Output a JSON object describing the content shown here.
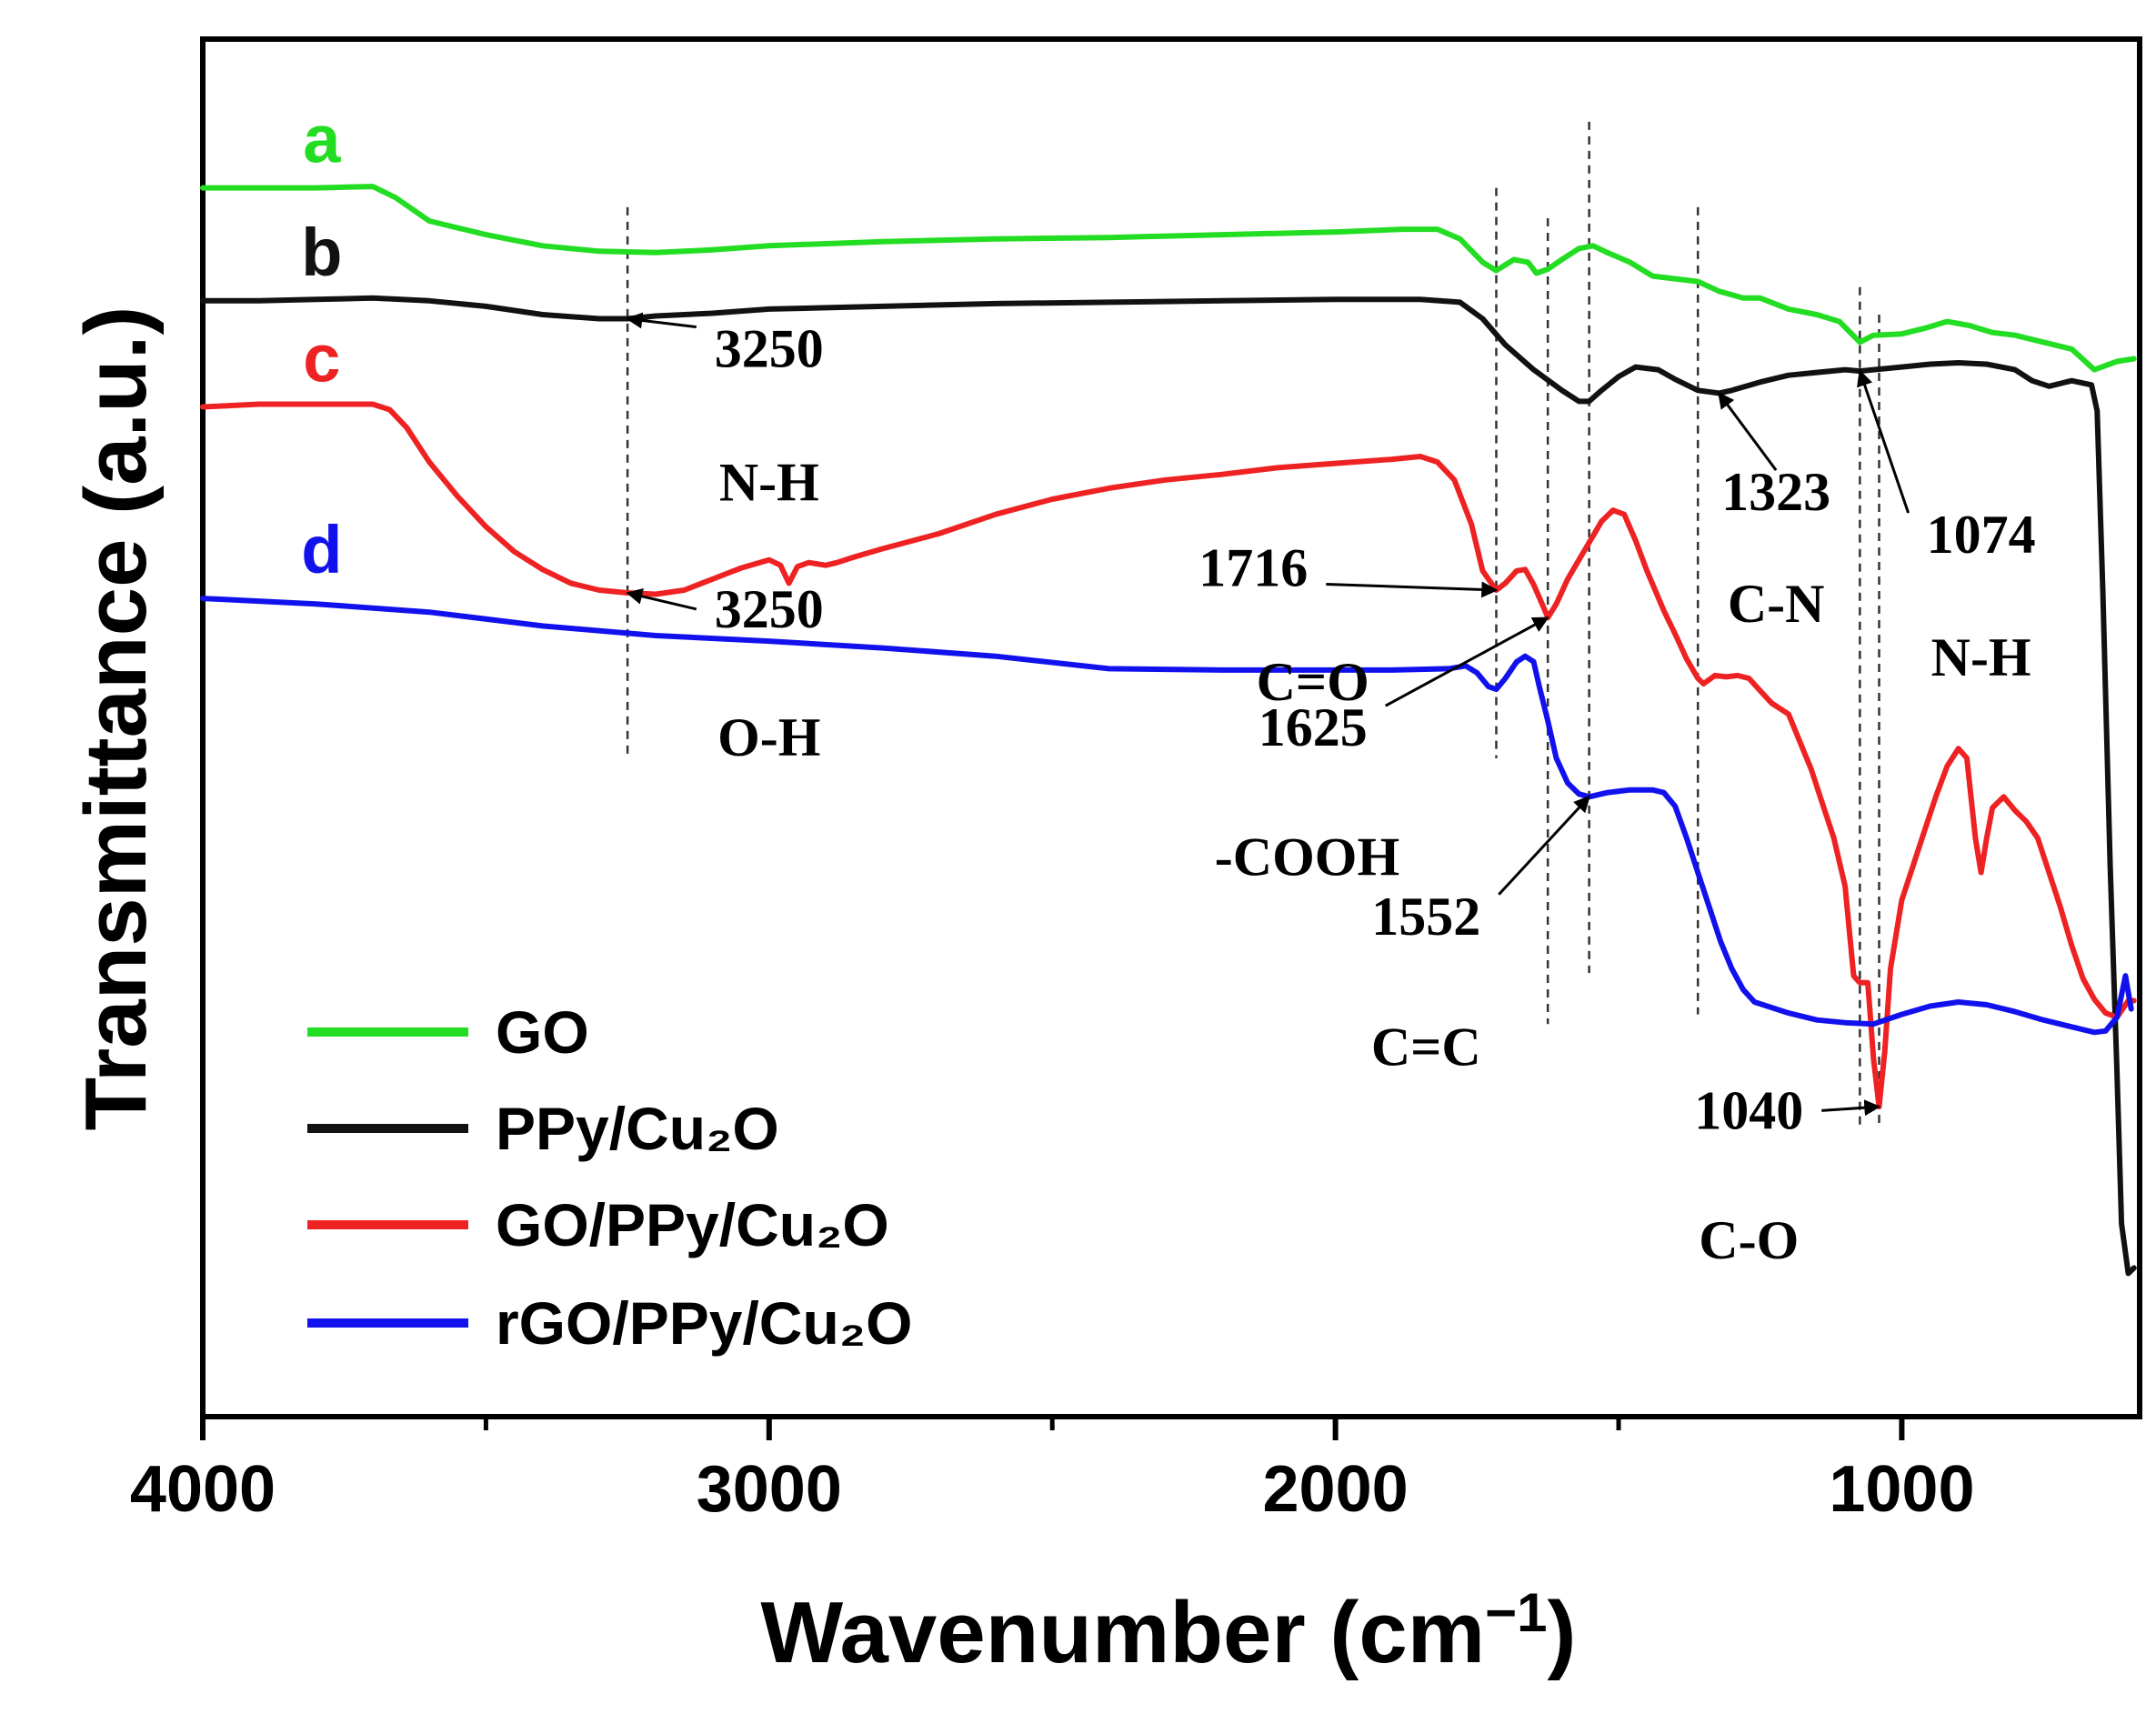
{
  "chart_data": {
    "type": "line",
    "title": "",
    "xlabel": "Wavenumber (cm",
    "xlabel_sup": "−1",
    "xlabel_close": ")",
    "ylabel": "Transmittance (a.u.)",
    "xlim": [
      4000,
      580
    ],
    "ylim": [
      0,
      1
    ],
    "x_ticks": [
      {
        "value": 4000,
        "label": "4000"
      },
      {
        "value": 3000,
        "label": "3000"
      },
      {
        "value": 2000,
        "label": "2000"
      },
      {
        "value": 1000,
        "label": "1000"
      }
    ],
    "x_minor_ticks": [
      3500,
      2500,
      1500
    ],
    "grid": false,
    "legend_position": "bottom-left",
    "series": [
      {
        "name": "GO",
        "letter": "a",
        "color": "#22dd22",
        "letter_x": 3790,
        "points": [
          [
            4000,
            0.892
          ],
          [
            3800,
            0.892
          ],
          [
            3700,
            0.893
          ],
          [
            3660,
            0.885
          ],
          [
            3600,
            0.868
          ],
          [
            3500,
            0.858
          ],
          [
            3400,
            0.85
          ],
          [
            3300,
            0.846
          ],
          [
            3200,
            0.845
          ],
          [
            3100,
            0.847
          ],
          [
            3000,
            0.85
          ],
          [
            2800,
            0.853
          ],
          [
            2600,
            0.855
          ],
          [
            2400,
            0.856
          ],
          [
            2200,
            0.858
          ],
          [
            2000,
            0.86
          ],
          [
            1880,
            0.862
          ],
          [
            1820,
            0.862
          ],
          [
            1780,
            0.855
          ],
          [
            1740,
            0.838
          ],
          [
            1716,
            0.832
          ],
          [
            1685,
            0.84
          ],
          [
            1660,
            0.838
          ],
          [
            1645,
            0.83
          ],
          [
            1625,
            0.833
          ],
          [
            1600,
            0.84
          ],
          [
            1570,
            0.848
          ],
          [
            1545,
            0.85
          ],
          [
            1520,
            0.845
          ],
          [
            1480,
            0.838
          ],
          [
            1440,
            0.828
          ],
          [
            1400,
            0.826
          ],
          [
            1360,
            0.824
          ],
          [
            1323,
            0.817
          ],
          [
            1280,
            0.812
          ],
          [
            1250,
            0.812
          ],
          [
            1200,
            0.804
          ],
          [
            1150,
            0.8
          ],
          [
            1110,
            0.795
          ],
          [
            1074,
            0.78
          ],
          [
            1050,
            0.785
          ],
          [
            1000,
            0.786
          ],
          [
            960,
            0.79
          ],
          [
            920,
            0.795
          ],
          [
            880,
            0.792
          ],
          [
            840,
            0.787
          ],
          [
            800,
            0.785
          ],
          [
            760,
            0.781
          ],
          [
            700,
            0.775
          ],
          [
            660,
            0.76
          ],
          [
            620,
            0.766
          ],
          [
            590,
            0.768
          ]
        ]
      },
      {
        "name": "PPy/Cu₂O",
        "letter": "b",
        "color": "#111111",
        "letter_x": 3790,
        "points": [
          [
            4000,
            0.81
          ],
          [
            3900,
            0.81
          ],
          [
            3800,
            0.811
          ],
          [
            3700,
            0.812
          ],
          [
            3600,
            0.81
          ],
          [
            3500,
            0.806
          ],
          [
            3400,
            0.8
          ],
          [
            3300,
            0.797
          ],
          [
            3250,
            0.797
          ],
          [
            3200,
            0.799
          ],
          [
            3100,
            0.801
          ],
          [
            3000,
            0.804
          ],
          [
            2800,
            0.806
          ],
          [
            2600,
            0.808
          ],
          [
            2400,
            0.809
          ],
          [
            2200,
            0.81
          ],
          [
            2000,
            0.811
          ],
          [
            1850,
            0.811
          ],
          [
            1780,
            0.809
          ],
          [
            1740,
            0.797
          ],
          [
            1700,
            0.778
          ],
          [
            1650,
            0.76
          ],
          [
            1600,
            0.745
          ],
          [
            1570,
            0.737
          ],
          [
            1552,
            0.737
          ],
          [
            1530,
            0.745
          ],
          [
            1500,
            0.755
          ],
          [
            1470,
            0.762
          ],
          [
            1430,
            0.76
          ],
          [
            1400,
            0.753
          ],
          [
            1360,
            0.745
          ],
          [
            1323,
            0.743
          ],
          [
            1300,
            0.745
          ],
          [
            1250,
            0.751
          ],
          [
            1200,
            0.756
          ],
          [
            1150,
            0.758
          ],
          [
            1100,
            0.76
          ],
          [
            1074,
            0.759
          ],
          [
            1050,
            0.76
          ],
          [
            1000,
            0.762
          ],
          [
            950,
            0.764
          ],
          [
            900,
            0.765
          ],
          [
            850,
            0.764
          ],
          [
            800,
            0.76
          ],
          [
            770,
            0.752
          ],
          [
            740,
            0.748
          ],
          [
            700,
            0.752
          ],
          [
            665,
            0.749
          ],
          [
            655,
            0.73
          ],
          [
            645,
            0.6
          ],
          [
            632,
            0.4
          ],
          [
            620,
            0.25
          ],
          [
            612,
            0.14
          ],
          [
            600,
            0.104
          ],
          [
            590,
            0.108
          ]
        ]
      },
      {
        "name": "GO/PPy/Cu₂O",
        "letter": "c",
        "color": "#ee2222",
        "letter_x": 3790,
        "points": [
          [
            4000,
            0.733
          ],
          [
            3900,
            0.735
          ],
          [
            3800,
            0.735
          ],
          [
            3700,
            0.735
          ],
          [
            3670,
            0.731
          ],
          [
            3640,
            0.718
          ],
          [
            3600,
            0.693
          ],
          [
            3550,
            0.668
          ],
          [
            3500,
            0.646
          ],
          [
            3450,
            0.628
          ],
          [
            3400,
            0.615
          ],
          [
            3350,
            0.605
          ],
          [
            3300,
            0.6
          ],
          [
            3250,
            0.598
          ],
          [
            3200,
            0.597
          ],
          [
            3150,
            0.6
          ],
          [
            3100,
            0.608
          ],
          [
            3050,
            0.616
          ],
          [
            3000,
            0.622
          ],
          [
            2980,
            0.618
          ],
          [
            2965,
            0.605
          ],
          [
            2950,
            0.617
          ],
          [
            2930,
            0.62
          ],
          [
            2900,
            0.618
          ],
          [
            2880,
            0.62
          ],
          [
            2850,
            0.624
          ],
          [
            2800,
            0.63
          ],
          [
            2700,
            0.641
          ],
          [
            2600,
            0.655
          ],
          [
            2500,
            0.666
          ],
          [
            2400,
            0.674
          ],
          [
            2300,
            0.68
          ],
          [
            2200,
            0.684
          ],
          [
            2100,
            0.689
          ],
          [
            2000,
            0.692
          ],
          [
            1900,
            0.695
          ],
          [
            1850,
            0.697
          ],
          [
            1820,
            0.693
          ],
          [
            1790,
            0.68
          ],
          [
            1760,
            0.648
          ],
          [
            1740,
            0.614
          ],
          [
            1716,
            0.6
          ],
          [
            1700,
            0.605
          ],
          [
            1680,
            0.614
          ],
          [
            1665,
            0.615
          ],
          [
            1650,
            0.604
          ],
          [
            1630,
            0.585
          ],
          [
            1625,
            0.58
          ],
          [
            1610,
            0.59
          ],
          [
            1590,
            0.608
          ],
          [
            1570,
            0.622
          ],
          [
            1550,
            0.636
          ],
          [
            1530,
            0.65
          ],
          [
            1510,
            0.658
          ],
          [
            1490,
            0.655
          ],
          [
            1470,
            0.636
          ],
          [
            1450,
            0.614
          ],
          [
            1420,
            0.585
          ],
          [
            1400,
            0.568
          ],
          [
            1380,
            0.55
          ],
          [
            1360,
            0.536
          ],
          [
            1350,
            0.532
          ],
          [
            1330,
            0.538
          ],
          [
            1310,
            0.537
          ],
          [
            1290,
            0.538
          ],
          [
            1270,
            0.536
          ],
          [
            1250,
            0.527
          ],
          [
            1230,
            0.518
          ],
          [
            1200,
            0.51
          ],
          [
            1180,
            0.49
          ],
          [
            1160,
            0.47
          ],
          [
            1140,
            0.445
          ],
          [
            1120,
            0.42
          ],
          [
            1100,
            0.385
          ],
          [
            1085,
            0.32
          ],
          [
            1074,
            0.315
          ],
          [
            1060,
            0.315
          ],
          [
            1050,
            0.26
          ],
          [
            1040,
            0.225
          ],
          [
            1030,
            0.265
          ],
          [
            1020,
            0.325
          ],
          [
            1000,
            0.375
          ],
          [
            980,
            0.4
          ],
          [
            960,
            0.425
          ],
          [
            940,
            0.45
          ],
          [
            920,
            0.472
          ],
          [
            900,
            0.485
          ],
          [
            885,
            0.478
          ],
          [
            870,
            0.42
          ],
          [
            860,
            0.395
          ],
          [
            850,
            0.42
          ],
          [
            840,
            0.442
          ],
          [
            820,
            0.45
          ],
          [
            800,
            0.44
          ],
          [
            780,
            0.432
          ],
          [
            760,
            0.42
          ],
          [
            740,
            0.395
          ],
          [
            720,
            0.37
          ],
          [
            700,
            0.342
          ],
          [
            680,
            0.318
          ],
          [
            660,
            0.303
          ],
          [
            640,
            0.293
          ],
          [
            620,
            0.29
          ],
          [
            600,
            0.302
          ],
          [
            590,
            0.302
          ]
        ]
      },
      {
        "name": "rGO/PPy/Cu₂O",
        "letter": "d",
        "color": "#1111ee",
        "letter_x": 3790,
        "points": [
          [
            4000,
            0.594
          ],
          [
            3800,
            0.59
          ],
          [
            3600,
            0.584
          ],
          [
            3400,
            0.574
          ],
          [
            3200,
            0.567
          ],
          [
            3000,
            0.563
          ],
          [
            2800,
            0.558
          ],
          [
            2600,
            0.552
          ],
          [
            2400,
            0.543
          ],
          [
            2200,
            0.542
          ],
          [
            2000,
            0.542
          ],
          [
            1900,
            0.542
          ],
          [
            1800,
            0.543
          ],
          [
            1770,
            0.545
          ],
          [
            1750,
            0.54
          ],
          [
            1730,
            0.53
          ],
          [
            1716,
            0.528
          ],
          [
            1700,
            0.536
          ],
          [
            1680,
            0.548
          ],
          [
            1665,
            0.552
          ],
          [
            1650,
            0.548
          ],
          [
            1640,
            0.53
          ],
          [
            1625,
            0.505
          ],
          [
            1610,
            0.478
          ],
          [
            1590,
            0.46
          ],
          [
            1570,
            0.452
          ],
          [
            1552,
            0.45
          ],
          [
            1520,
            0.453
          ],
          [
            1480,
            0.455
          ],
          [
            1440,
            0.455
          ],
          [
            1420,
            0.453
          ],
          [
            1400,
            0.443
          ],
          [
            1380,
            0.42
          ],
          [
            1360,
            0.395
          ],
          [
            1340,
            0.37
          ],
          [
            1320,
            0.345
          ],
          [
            1300,
            0.325
          ],
          [
            1280,
            0.31
          ],
          [
            1260,
            0.301
          ],
          [
            1200,
            0.293
          ],
          [
            1150,
            0.288
          ],
          [
            1100,
            0.286
          ],
          [
            1050,
            0.285
          ],
          [
            1000,
            0.292
          ],
          [
            950,
            0.298
          ],
          [
            900,
            0.301
          ],
          [
            850,
            0.299
          ],
          [
            800,
            0.294
          ],
          [
            750,
            0.288
          ],
          [
            700,
            0.283
          ],
          [
            660,
            0.279
          ],
          [
            640,
            0.28
          ],
          [
            620,
            0.29
          ],
          [
            605,
            0.32
          ],
          [
            595,
            0.296
          ]
        ]
      }
    ],
    "guide_lines_at": [
      3250,
      1716,
      1625,
      1552,
      1360,
      1074,
      1040
    ],
    "annotations": [
      {
        "text": "3250",
        "x": 3000,
        "y": 0.762,
        "arrow_to": [
          3250,
          0.797
        ]
      },
      {
        "text": "N-H",
        "x": 3000,
        "y": 0.665,
        "arrow_to": null
      },
      {
        "text": "3250",
        "x": 3000,
        "y": 0.573,
        "arrow_to": [
          3250,
          0.598
        ]
      },
      {
        "text": "O-H",
        "x": 3000,
        "y": 0.48,
        "arrow_to": null
      },
      {
        "text": "1716",
        "x": 2145,
        "y": 0.603,
        "arrow_to": [
          1716,
          0.6
        ]
      },
      {
        "text": "C=O",
        "x": 2040,
        "y": 0.52,
        "arrow_to": null
      },
      {
        "text": "1625",
        "x": 2040,
        "y": 0.487,
        "arrow_to": [
          1625,
          0.58
        ]
      },
      {
        "text": "-COOH",
        "x": 2050,
        "y": 0.393,
        "arrow_to": null
      },
      {
        "text": "1552",
        "x": 1840,
        "y": 0.35,
        "arrow_to": [
          1552,
          0.45
        ]
      },
      {
        "text": "C=C",
        "x": 1840,
        "y": 0.255,
        "arrow_to": null
      },
      {
        "text": "1323",
        "x": 1222,
        "y": 0.658,
        "arrow_to": [
          1323,
          0.743
        ]
      },
      {
        "text": "1074",
        "x": 860,
        "y": 0.627,
        "arrow_to": [
          1074,
          0.759
        ]
      },
      {
        "text": "C-N",
        "x": 1222,
        "y": 0.577,
        "arrow_to": null
      },
      {
        "text": "N-H",
        "x": 860,
        "y": 0.538,
        "arrow_to": null
      },
      {
        "text": "1040",
        "x": 1270,
        "y": 0.209,
        "arrow_to": [
          1040,
          0.225
        ]
      },
      {
        "text": "C-O",
        "x": 1270,
        "y": 0.115,
        "arrow_to": null
      }
    ]
  }
}
